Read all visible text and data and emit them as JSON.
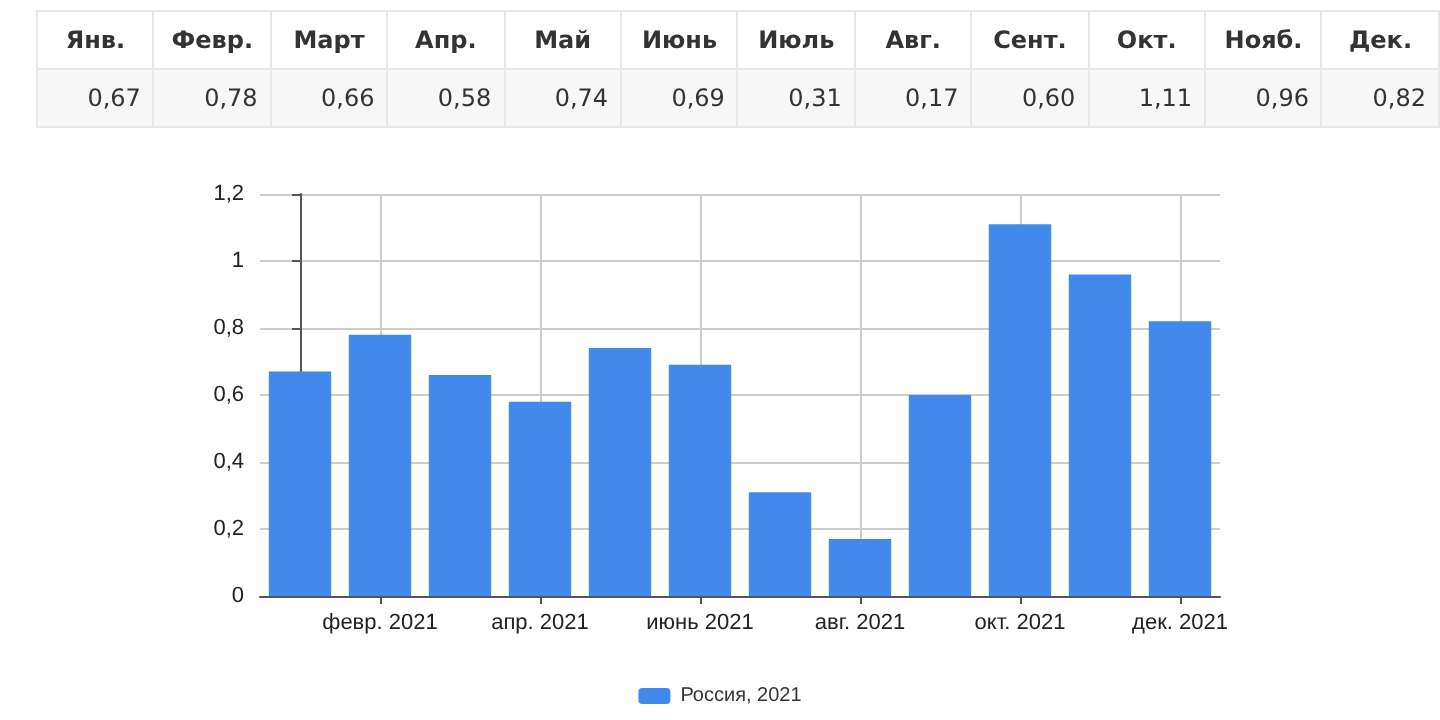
{
  "chart_data": [
    {
      "type": "other",
      "categories": [
        "Янв.",
        "Февр.",
        "Март",
        "Апр.",
        "Май",
        "Июнь",
        "Июль",
        "Авг.",
        "Сент.",
        "Окт.",
        "Нояб.",
        "Дек."
      ],
      "value_labels": [
        "0,67",
        "0,78",
        "0,66",
        "0,58",
        "0,74",
        "0,69",
        "0,31",
        "0,17",
        "0,60",
        "1,11",
        "0,96",
        "0,82"
      ]
    },
    {
      "type": "bar",
      "categories": [
        null,
        "февр. 2021",
        null,
        "апр. 2021",
        null,
        "июнь 2021",
        null,
        "авг. 2021",
        null,
        "окт. 2021",
        null,
        "дек. 2021"
      ],
      "series": [
        {
          "name": "Россия, 2021",
          "color": "#418aec",
          "values": [
            0.67,
            0.78,
            0.66,
            0.58,
            0.74,
            0.69,
            0.31,
            0.17,
            0.6,
            1.11,
            0.96,
            0.82
          ]
        }
      ],
      "ylim": [
        0,
        1.2
      ],
      "yticks": [
        0,
        {
          "value": 0.2,
          "label": "0,2"
        },
        {
          "value": 0.4,
          "label": "0,4"
        },
        {
          "value": 0.6,
          "label": "0,6"
        },
        {
          "value": 0.8,
          "label": "0,8"
        },
        1,
        {
          "value": 1.2,
          "label": "1,2"
        }
      ],
      "grid": true,
      "legend": "bottom"
    }
  ]
}
